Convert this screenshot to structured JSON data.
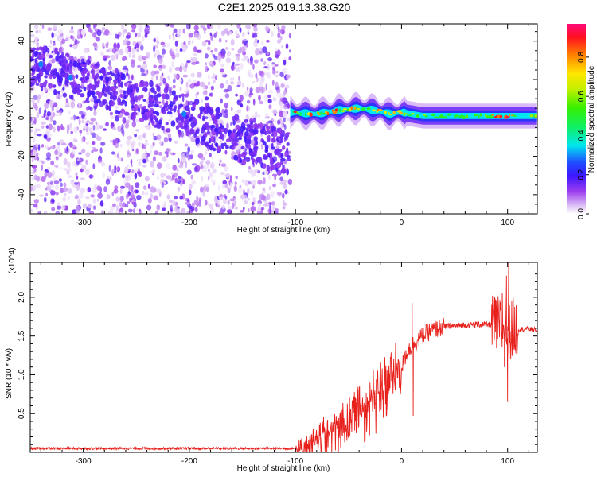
{
  "title": "C2E1.2025.019.13.38.G20",
  "colors": {
    "snr_line": "#e8201c",
    "axis": "#000000"
  },
  "chart_data": [
    {
      "type": "heatmap",
      "xlabel": "Height of straight line (km)",
      "ylabel": "Frequency (Hz)",
      "xlim": [
        -350,
        128
      ],
      "ylim": [
        -50,
        49
      ],
      "xticks": [
        -300,
        -200,
        -100,
        0,
        100
      ],
      "yticks": [
        -40,
        -20,
        0,
        20,
        40
      ],
      "colorbar": {
        "label": "Normalized spectral amplitude",
        "range": [
          0,
          0.97
        ],
        "ticks": [
          0.0,
          0.2,
          0.4,
          0.6,
          0.8
        ],
        "tick_labels": [
          "0.0",
          "0.2",
          "0.4",
          "0.6",
          "0.8"
        ],
        "colormap": "rainbow (white/violet to red)"
      },
      "regions": [
        {
          "name": "diffuse scatter",
          "x_range": [
            -350,
            -105
          ],
          "freq_range": [
            -50,
            49
          ],
          "amplitude": "0.0-0.25"
        },
        {
          "name": "descending trend",
          "x": [
            -350,
            -300,
            -250,
            -200,
            -150,
            -105
          ],
          "freq": [
            28,
            20,
            10,
            0,
            -12,
            -18
          ]
        },
        {
          "name": "carrier band",
          "x": [
            -105,
            -80,
            -60,
            -40,
            -25,
            -10,
            0,
            20,
            60,
            90,
            100,
            128
          ],
          "freq": [
            3,
            2,
            4,
            5,
            4,
            2,
            3,
            1,
            1,
            1,
            1,
            1
          ],
          "amplitude": "0.3-0.95"
        }
      ]
    },
    {
      "type": "line",
      "xlabel": "Height of straight line (km)",
      "ylabel": "SNR (10 * v/v)",
      "y_multiplier": "(x10^4)",
      "xlim": [
        -350,
        128
      ],
      "ylim": [
        0,
        2.45
      ],
      "xticks": [
        -300,
        -200,
        -100,
        0,
        100
      ],
      "yticks": [
        0.5,
        1.0,
        1.5,
        2.0
      ],
      "ytick_labels": [
        "0.5",
        "1.0",
        "1.5",
        "2.0"
      ],
      "series": [
        {
          "x": [
            -350,
            -200,
            -110,
            -100,
            -95,
            -90,
            -85,
            -80,
            -75,
            -70,
            -65,
            -60,
            -55,
            -50,
            -45,
            -40,
            -35,
            -30,
            -25,
            -20,
            -15,
            -10,
            -5,
            0,
            5,
            10,
            15,
            20,
            25,
            30,
            35,
            40,
            50,
            60,
            70,
            80,
            85,
            90,
            95,
            100,
            105,
            110,
            120,
            128
          ],
          "y": [
            0.05,
            0.05,
            0.05,
            0.05,
            0.06,
            0.08,
            0.14,
            0.22,
            0.27,
            0.32,
            0.33,
            0.35,
            0.42,
            0.48,
            0.52,
            0.6,
            0.65,
            0.72,
            0.78,
            0.9,
            0.95,
            1.0,
            1.05,
            1.1,
            1.3,
            1.38,
            1.44,
            1.5,
            1.55,
            1.58,
            1.6,
            1.62,
            1.63,
            1.64,
            1.65,
            1.65,
            1.64,
            1.63,
            1.62,
            1.6,
            1.6,
            1.59,
            1.59,
            1.58
          ],
          "spikes": [
            {
              "x": 10,
              "y": 1.93
            },
            {
              "x": 11,
              "y": 0.47
            },
            {
              "x": 95,
              "y": 2.05
            },
            {
              "x": 97,
              "y": 1.1
            },
            {
              "x": 99,
              "y": 2.28
            },
            {
              "x": 100,
              "y": 0.65
            },
            {
              "x": 101,
              "y": 2.45
            },
            {
              "x": 103,
              "y": 1.2
            }
          ]
        }
      ]
    }
  ]
}
